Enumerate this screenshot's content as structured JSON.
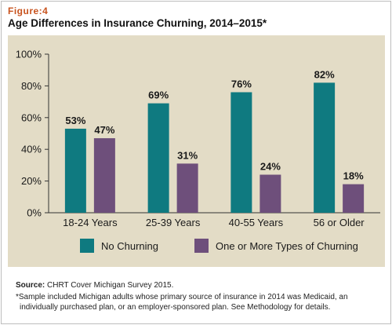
{
  "figure": {
    "label": "Figure:4",
    "title": "Age Differences in Insurance Churning, 2014–2015*"
  },
  "footer": {
    "source_label": "Source:",
    "source_text": " CHRT Cover Michigan Survey 2015.",
    "note": "*Sample included Michigan adults whose primary source of insurance in 2014 was Medicaid, an individually purchased plan, or an employer-sponsored plan. See Methodology for details."
  },
  "colors": {
    "panel": "#e3dcc6",
    "no_churning": "#0f7a80",
    "churning": "#6e4f7b"
  },
  "chart_data": {
    "type": "bar",
    "categories": [
      "18-24 Years",
      "25-39 Years",
      "40-55 Years",
      "56 or Older"
    ],
    "series": [
      {
        "name": "No Churning",
        "values": [
          53,
          69,
          76,
          82
        ],
        "color": "#0f7a80"
      },
      {
        "name": "One or More Types of Churning",
        "values": [
          47,
          31,
          24,
          18
        ],
        "color": "#6e4f7b"
      }
    ],
    "value_labels": [
      [
        "53%",
        "69%",
        "76%",
        "82%"
      ],
      [
        "47%",
        "31%",
        "24%",
        "18%"
      ]
    ],
    "y_ticks": [
      "0%",
      "20%",
      "40%",
      "60%",
      "80%",
      "100%"
    ],
    "ylim": [
      0,
      100
    ],
    "grid": false,
    "legend_position": "bottom"
  }
}
